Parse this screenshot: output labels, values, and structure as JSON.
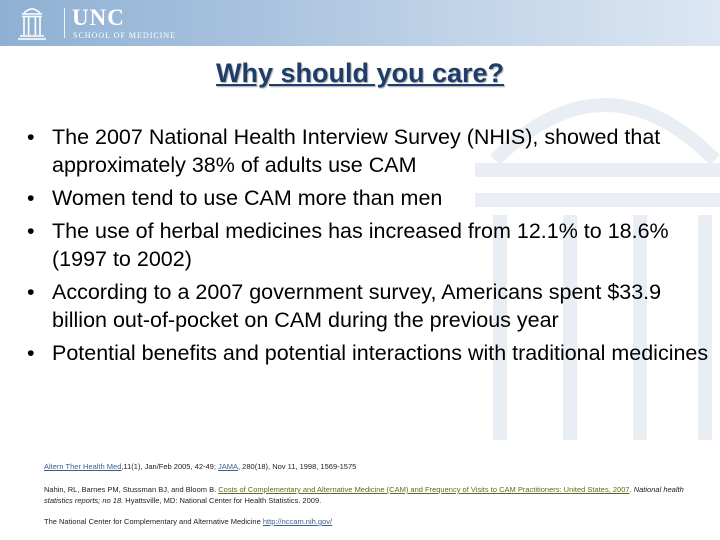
{
  "header": {
    "logo_title": "UNC",
    "logo_subtitle": "SCHOOL OF MEDICINE"
  },
  "slide": {
    "title": "Why should you care?",
    "bullet_glyph": "•",
    "bullets": [
      {
        "text": "The 2007 National Health Interview Survey (NHIS), showed that approximately 38% of adults use CAM"
      },
      {
        "text": "Women tend to use CAM more than men"
      },
      {
        "text": "The use of herbal medicines has increased from 12.1% to 18.6% (1997 to 2002)"
      },
      {
        "text": "According to a 2007 government survey, Americans spent $33.9 billion out-of-pocket on CAM during the previous year"
      },
      {
        "text": "Potential benefits and potential interactions with traditional medicines"
      }
    ]
  },
  "references": {
    "ref1": {
      "journal1": "Altern Ther Health Med",
      "citation1": ",11(1), Jan/Feb 2005, 42-49; ",
      "journal2": "JAMA",
      "citation2": ", 280(18), Nov 11, 1998, 1569-1575"
    },
    "ref2": {
      "authors": "Nahin, RL, Barnes PM, Stussman BJ, and Bloom B. ",
      "link_title": "Costs of Complementary and Alternative Medicine (CAM) and Frequency of Visits to CAM Practitioners: United States, 2007",
      "report": ". National health statistics reports; no 18.",
      "publisher": " Hyattsville, MD: National Center for Health Statistics. 2009."
    },
    "ref3": {
      "text": "The National Center for Complementary and Alternative Medicine ",
      "url": "http://nccam.nih.gov/"
    }
  },
  "colors": {
    "banner_start": "#8fb0d3",
    "banner_end": "#dce7f3",
    "title": "#1f3d6b",
    "link": "#3d5f8c",
    "link_alt": "#5a6e1c"
  },
  "icons": {
    "logo": "old-well-icon",
    "watermark": "old-well-watermark"
  }
}
